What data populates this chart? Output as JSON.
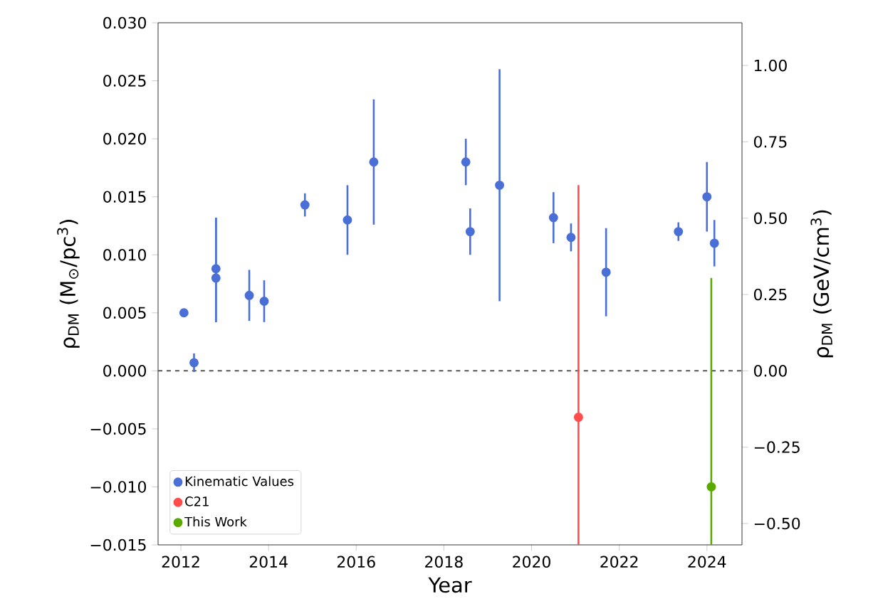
{
  "chart_data": {
    "type": "scatter",
    "xlabel": "Year",
    "ylabel": "ρ$_{DM}$ (M$_{⊙}$/pc$^{3}$)",
    "y2label": "ρ$_{DM}$ (GeV/cm$^{3}$)",
    "series": [
      {
        "name": "Kinematic Values",
        "color": "#4a6fd6",
        "x": [
          2012.07,
          2012.3,
          2012.8,
          2012.8,
          2013.56,
          2013.9,
          2014.83,
          2015.8,
          2016.4,
          2018.5,
          2018.6,
          2019.27,
          2020.5,
          2020.9,
          2021.7,
          2023.35,
          2024.0,
          2024.17
        ],
        "values": [
          0.005,
          0.0007,
          0.0088,
          0.008,
          0.0065,
          0.006,
          0.0143,
          0.013,
          0.018,
          0.018,
          0.012,
          0.016,
          0.0132,
          0.0115,
          0.0085,
          0.012,
          0.015,
          0.011
        ],
        "errors": [
          null,
          0.0008,
          [
            0.0042,
            0.0132
          ],
          [
            0.0042,
            0.0132
          ],
          0.0022,
          0.0018,
          0.001,
          0.003,
          0.0054,
          0.002,
          0.002,
          0.01,
          0.0022,
          0.0012,
          0.0038,
          0.0008,
          0.003,
          0.002
        ]
      },
      {
        "name": "C21",
        "color": "#ff4d4d",
        "x": [
          2021.07
        ],
        "values": [
          -0.004
        ],
        "errors": [
          [
            -0.015,
            0.016
          ]
        ]
      },
      {
        "name": "This Work",
        "color": "#5aaa00",
        "x": [
          2024.1
        ],
        "values": [
          -0.01
        ],
        "errors": [
          [
            -0.015,
            0.008
          ]
        ]
      }
    ],
    "marker": "circle",
    "legend": "bottom left",
    "xlim": [
      2011.48,
      2024.8
    ],
    "xticks": [
      2012,
      2014,
      2016,
      2018,
      2020,
      2022,
      2024
    ],
    "ylim": [
      -0.015,
      0.03
    ],
    "yticks": [
      {
        "value": -0.015,
        "label": "−0.015"
      },
      {
        "value": -0.01,
        "label": "−0.010"
      },
      {
        "value": -0.005,
        "label": "−0.005"
      },
      {
        "value": 0,
        "label": "0.000"
      },
      {
        "value": 0.005,
        "label": "0.005"
      },
      {
        "value": 0.01,
        "label": "0.010"
      },
      {
        "value": 0.015,
        "label": "0.015"
      },
      {
        "value": 0.02,
        "label": "0.020"
      },
      {
        "value": 0.025,
        "label": "0.025"
      },
      {
        "value": 0.03,
        "label": "0.030"
      }
    ],
    "y2lim": [
      -0.57,
      1.14
    ],
    "y2ticks": [
      {
        "value": -0.5,
        "label": "−0.50"
      },
      {
        "value": -0.25,
        "label": "−0.25"
      },
      {
        "value": 0,
        "label": "0.00"
      },
      {
        "value": 0.25,
        "label": "0.25"
      },
      {
        "value": 0.5,
        "label": "0.50"
      },
      {
        "value": 0.75,
        "label": "0.75"
      },
      {
        "value": 1.0,
        "label": "1.00"
      }
    ],
    "ref_lines": [
      {
        "axis": "y",
        "value": 0,
        "color": "#555555",
        "line_style": "dashed"
      }
    ]
  }
}
